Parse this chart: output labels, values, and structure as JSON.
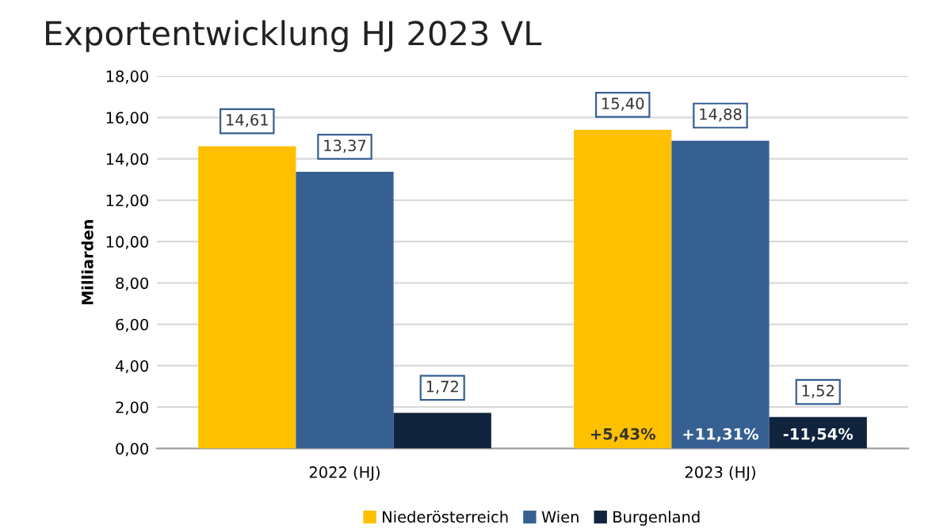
{
  "chart_data": {
    "type": "bar",
    "title": "Exportentwicklung HJ 2023 VL",
    "ylabel": "Milliarden",
    "categories": [
      "2022 (HJ)",
      "2023 (HJ)"
    ],
    "series": [
      {
        "name": "Niederösterreich",
        "color": "#ffc000",
        "values": [
          14.61,
          15.4
        ],
        "value_labels": [
          "14,61",
          "15,40"
        ]
      },
      {
        "name": "Wien",
        "color": "#376092",
        "values": [
          13.37,
          14.88
        ],
        "value_labels": [
          "13,37",
          "14,88"
        ]
      },
      {
        "name": "Burgenland",
        "color": "#10243e",
        "values": [
          1.72,
          1.52
        ],
        "value_labels": [
          "1,72",
          "1,52"
        ]
      }
    ],
    "annotations": [
      "+5,43%",
      "+11,31%",
      "-11,54%"
    ],
    "ylim": [
      0,
      18
    ],
    "yticks": [
      {
        "value": 0,
        "label": "0,00"
      },
      {
        "value": 2,
        "label": "2,00"
      },
      {
        "value": 4,
        "label": "4,00"
      },
      {
        "value": 6,
        "label": "6,00"
      },
      {
        "value": 8,
        "label": "8,00"
      },
      {
        "value": 10,
        "label": "10,00"
      },
      {
        "value": 12,
        "label": "12,00"
      },
      {
        "value": 14,
        "label": "14,00"
      },
      {
        "value": 16,
        "label": "16,00"
      },
      {
        "value": 18,
        "label": "18,00"
      }
    ],
    "grid": "y",
    "legend": "bottom"
  }
}
